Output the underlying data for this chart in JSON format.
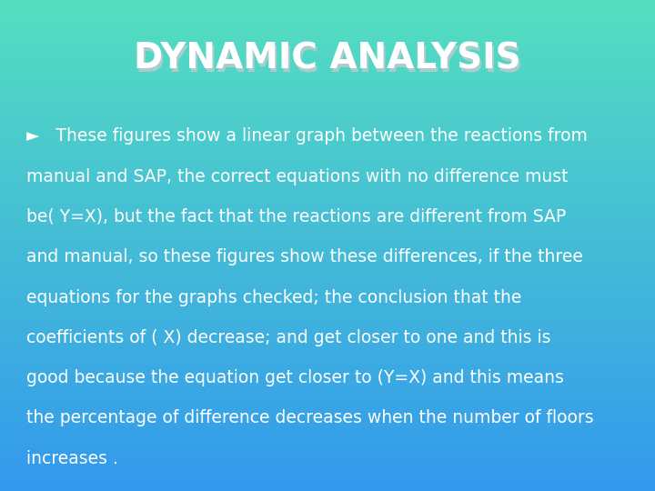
{
  "title": "DYNAMIC ANALYSIS",
  "title_color": "#ffffff",
  "title_fontsize": 28,
  "title_fontweight": "bold",
  "title_shadow_color": "#aacccc",
  "body_lines": [
    "►   These figures show a linear graph between the reactions from",
    "manual and SAP, the correct equations with no difference must",
    "be( Y=X), but the fact that the reactions are different from SAP",
    "and manual, so these figures show these differences, if the three",
    "equations for the graphs checked; the conclusion that the",
    "coefficients of ( X) decrease; and get closer to one and this is",
    "good because the equation get closer to (Y=X) and this means",
    "the percentage of difference decreases when the number of floors",
    "increases ."
  ],
  "body_color": "#ffffff",
  "body_fontsize": 13.5,
  "bg_color_top": "#55dfc0",
  "bg_color_bottom": "#3399ee",
  "figsize": [
    7.2,
    5.4
  ],
  "dpi": 100
}
